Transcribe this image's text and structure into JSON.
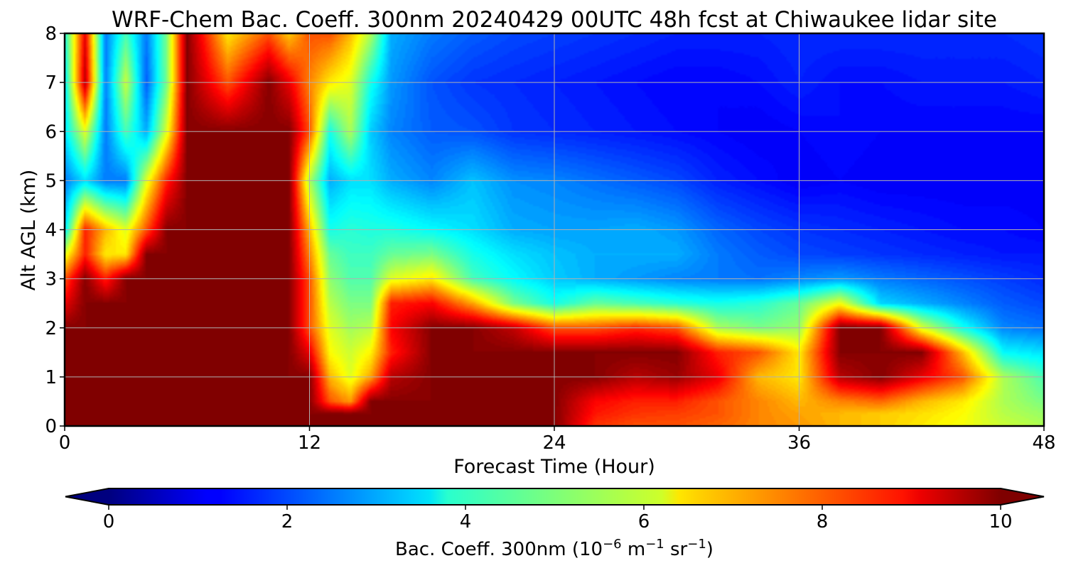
{
  "chart_data": {
    "type": "heatmap",
    "title": "WRF-Chem Bac. Coeff. 300nm  20240429 00UTC 48h fcst at Chiwaukee lidar site",
    "xlabel": "Forecast Time (Hour)",
    "ylabel": "Alt AGL (km)",
    "xlim": [
      0,
      48
    ],
    "ylim": [
      0,
      8
    ],
    "x_ticks": [
      0,
      12,
      24,
      36,
      48
    ],
    "y_ticks": [
      0,
      1,
      2,
      3,
      4,
      5,
      6,
      7,
      8
    ],
    "grid": true,
    "colormap": "jet",
    "colorbar": {
      "label_main": "Bac. Coeff. 300nm  (10",
      "label_exp1": "−6",
      "label_mid": " m",
      "label_exp2": "−1",
      "label_mid2": " sr",
      "label_exp3": "−1",
      "label_end": ")",
      "range": [
        0,
        10
      ],
      "ticks": [
        0,
        2,
        4,
        6,
        8,
        10
      ],
      "extend": "both",
      "orientation": "horizontal"
    },
    "x_hours": [
      0,
      1,
      2,
      3,
      4,
      5,
      6,
      8,
      10,
      11,
      12,
      13,
      14,
      15,
      16,
      18,
      20,
      22,
      24,
      26,
      28,
      30,
      32,
      34,
      36,
      38,
      40,
      42,
      44,
      46,
      48
    ],
    "y_km": [
      0,
      0.25,
      0.5,
      1,
      1.5,
      2,
      2.5,
      3,
      3.5,
      4,
      5,
      6,
      7,
      8
    ],
    "values_by_altitude": [
      [
        10,
        10,
        10,
        10,
        10,
        10,
        10,
        10,
        10,
        10,
        10,
        10,
        10,
        10,
        10,
        10,
        10,
        10,
        10,
        8.3,
        8.0,
        8.0,
        7.8,
        7.5,
        7.3,
        7.0,
        6.8,
        6.5,
        6.2,
        5.8,
        5.5
      ],
      [
        10,
        10,
        10,
        10,
        10,
        10,
        10,
        10,
        10,
        10,
        10,
        10,
        10,
        10,
        10,
        10,
        10,
        10,
        10,
        8.6,
        8.3,
        8.2,
        8.0,
        7.5,
        7.2,
        7.0,
        6.8,
        6.6,
        6.3,
        5.6,
        5.3
      ],
      [
        10,
        10,
        10,
        10,
        10,
        10,
        10,
        10,
        10,
        10,
        10,
        8.0,
        7.3,
        10,
        10,
        10,
        10,
        10,
        10,
        8.8,
        8.5,
        8.5,
        8.0,
        7.5,
        7.0,
        7.5,
        7.8,
        7.0,
        6.5,
        5.5,
        5.0
      ],
      [
        10,
        10,
        10,
        10,
        10,
        10,
        10,
        10,
        10,
        10,
        10,
        7.0,
        6.0,
        7.2,
        9.5,
        10,
        10,
        10,
        10,
        10,
        9.5,
        9.8,
        9.0,
        7.0,
        6.5,
        9.5,
        10,
        9.0,
        8.0,
        5.5,
        4.5
      ],
      [
        10,
        10,
        10,
        10,
        10,
        10,
        10,
        10,
        10,
        10,
        9.0,
        6.3,
        5.8,
        6.4,
        8.5,
        10,
        10,
        10,
        10,
        10,
        10,
        10,
        8.5,
        8.0,
        6.5,
        10,
        10,
        10,
        7.0,
        3.8,
        3.5
      ],
      [
        10,
        10,
        10,
        10,
        10,
        10,
        10,
        10,
        10,
        10,
        8.0,
        6.0,
        5.4,
        5.6,
        8.8,
        10,
        10,
        9.4,
        8.0,
        8.0,
        8.4,
        8.0,
        5.5,
        5.0,
        5.3,
        10,
        10,
        6.0,
        4.0,
        2.6,
        2.4
      ],
      [
        9.0,
        10,
        10,
        10,
        10,
        10,
        10,
        10,
        10,
        10,
        8.0,
        5.6,
        5.0,
        5.0,
        8.5,
        8.8,
        7.2,
        5.0,
        4.0,
        4.8,
        4.5,
        4.2,
        4.0,
        4.2,
        4.8,
        6.2,
        3.4,
        3.0,
        2.6,
        2.2,
        2.0
      ],
      [
        8.0,
        10,
        8.5,
        10,
        10,
        10,
        10,
        10,
        10,
        10,
        8.0,
        5.2,
        4.6,
        4.6,
        6.0,
        6.5,
        4.5,
        3.8,
        3.3,
        3.0,
        2.8,
        2.6,
        2.5,
        2.4,
        2.6,
        2.8,
        2.5,
        2.3,
        2.1,
        1.9,
        1.7
      ],
      [
        6.0,
        8.5,
        6.5,
        6.5,
        10,
        10,
        10,
        10,
        10,
        10,
        7.5,
        4.8,
        4.4,
        4.4,
        4.8,
        5.0,
        4.0,
        3.5,
        3.2,
        3.0,
        3.0,
        3.0,
        2.5,
        2.2,
        2.0,
        1.9,
        1.8,
        1.7,
        1.6,
        1.5,
        1.5
      ],
      [
        3.5,
        8.5,
        7.0,
        6.0,
        8.0,
        10,
        10,
        10,
        10,
        10,
        7.0,
        4.0,
        4.2,
        4.1,
        4.1,
        3.8,
        3.5,
        3.0,
        2.9,
        2.9,
        3.0,
        2.8,
        2.3,
        2.0,
        1.8,
        1.7,
        1.6,
        1.5,
        1.4,
        1.4,
        1.3
      ],
      [
        2.5,
        3.5,
        2.5,
        2.5,
        6.0,
        8.5,
        10,
        10,
        10,
        10,
        5.5,
        3.0,
        3.5,
        3.5,
        3.0,
        2.6,
        3.2,
        2.7,
        2.6,
        2.4,
        2.2,
        2.0,
        1.6,
        1.4,
        1.2,
        1.3,
        1.2,
        1.2,
        1.2,
        1.2,
        1.2
      ],
      [
        3.5,
        6.0,
        2.5,
        4.5,
        3.0,
        6.0,
        10,
        10,
        10,
        10,
        8.0,
        4.0,
        5.5,
        3.3,
        2.6,
        2.2,
        2.1,
        1.8,
        1.7,
        1.6,
        1.5,
        1.4,
        1.3,
        1.2,
        1.3,
        1.4,
        1.3,
        1.3,
        1.3,
        1.3,
        1.3
      ],
      [
        3.5,
        9.5,
        2.5,
        5.8,
        2.2,
        5.0,
        10,
        8.0,
        10,
        9.0,
        7.5,
        6.5,
        6.0,
        4.0,
        2.8,
        2.1,
        1.8,
        1.7,
        1.6,
        1.5,
        1.4,
        1.3,
        1.3,
        1.4,
        1.6,
        1.4,
        1.4,
        1.5,
        1.5,
        1.5,
        1.6
      ],
      [
        4.0,
        9.0,
        2.5,
        4.5,
        2.5,
        5.0,
        10,
        6.5,
        8.0,
        6.8,
        8.0,
        8.0,
        7.0,
        5.5,
        3.0,
        2.5,
        2.2,
        2.0,
        1.9,
        1.8,
        1.7,
        1.6,
        1.6,
        1.6,
        1.7,
        1.7,
        1.7,
        1.7,
        1.7,
        1.7,
        1.8
      ]
    ]
  }
}
